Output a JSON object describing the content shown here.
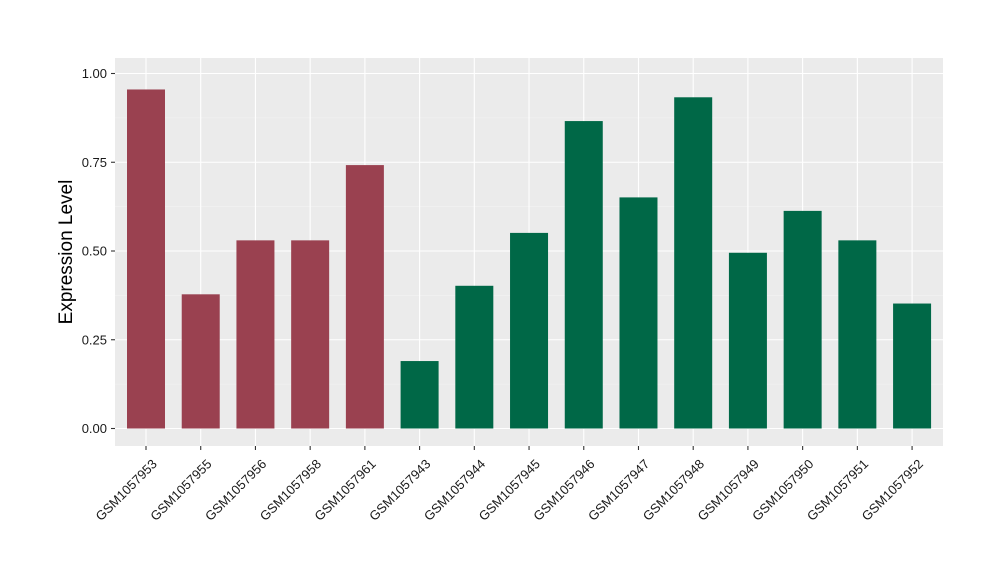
{
  "chart_data": {
    "type": "bar",
    "title": "",
    "xlabel": "",
    "ylabel": "Expression Level",
    "ylim": [
      0,
      1.0
    ],
    "yticks": [
      "0.00",
      "0.25",
      "0.50",
      "0.75",
      "1.00"
    ],
    "ytick_values": [
      0,
      0.25,
      0.5,
      0.75,
      1.0
    ],
    "grid": true,
    "categories": [
      "GSM1057953",
      "GSM1057955",
      "GSM1057956",
      "GSM1057958",
      "GSM1057961",
      "GSM1057943",
      "GSM1057944",
      "GSM1057945",
      "GSM1057946",
      "GSM1057947",
      "GSM1057948",
      "GSM1057949",
      "GSM1057950",
      "GSM1057951",
      "GSM1057952"
    ],
    "values": [
      0.955,
      0.378,
      0.53,
      0.53,
      0.742,
      0.19,
      0.402,
      0.551,
      0.866,
      0.651,
      0.933,
      0.495,
      0.613,
      0.53,
      0.352
    ],
    "bar_colors": [
      "#9a4150",
      "#9a4150",
      "#9a4150",
      "#9a4150",
      "#9a4150",
      "#006847",
      "#006847",
      "#006847",
      "#006847",
      "#006847",
      "#006847",
      "#006847",
      "#006847",
      "#006847",
      "#006847"
    ],
    "colors": {
      "group_a": "#9a4150",
      "group_b": "#006847",
      "panel_background": "#ebebeb",
      "grid": "#ffffff"
    }
  }
}
